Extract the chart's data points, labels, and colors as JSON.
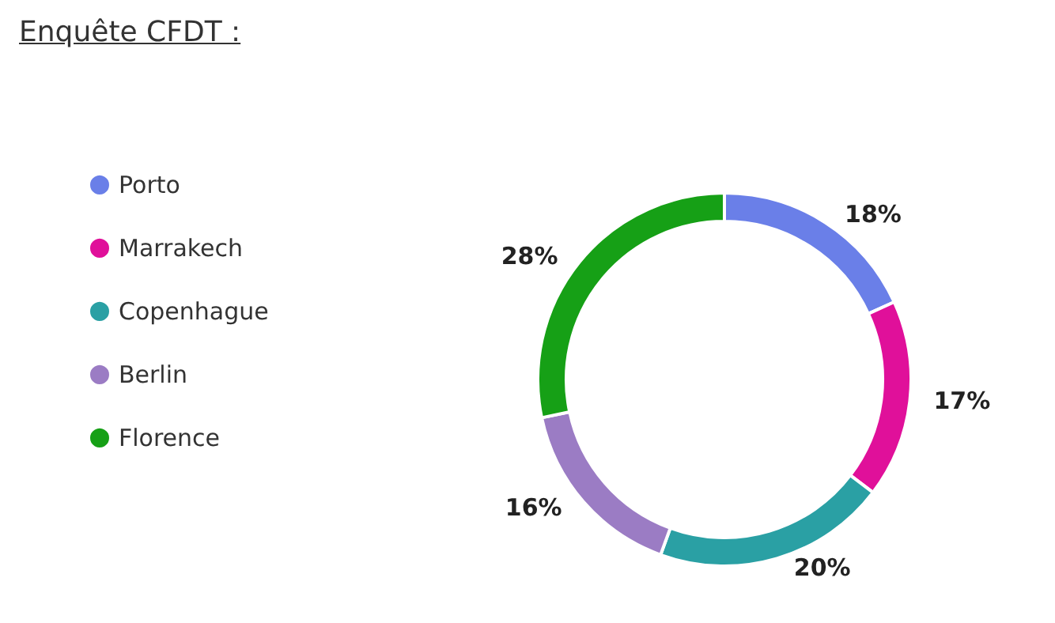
{
  "chart_data": {
    "type": "donut",
    "title": "Enquête CFDT :",
    "categories": [
      "Porto",
      "Marrakech",
      "Copenhague",
      "Berlin",
      "Florence"
    ],
    "values": [
      18,
      17,
      20,
      16,
      28
    ],
    "colors": [
      "#6a7fe8",
      "#e0109a",
      "#2aa0a4",
      "#9b7cc4",
      "#16a016"
    ],
    "value_labels": [
      "18%",
      "17%",
      "20%",
      "16%",
      "28%"
    ],
    "legend": "left"
  }
}
